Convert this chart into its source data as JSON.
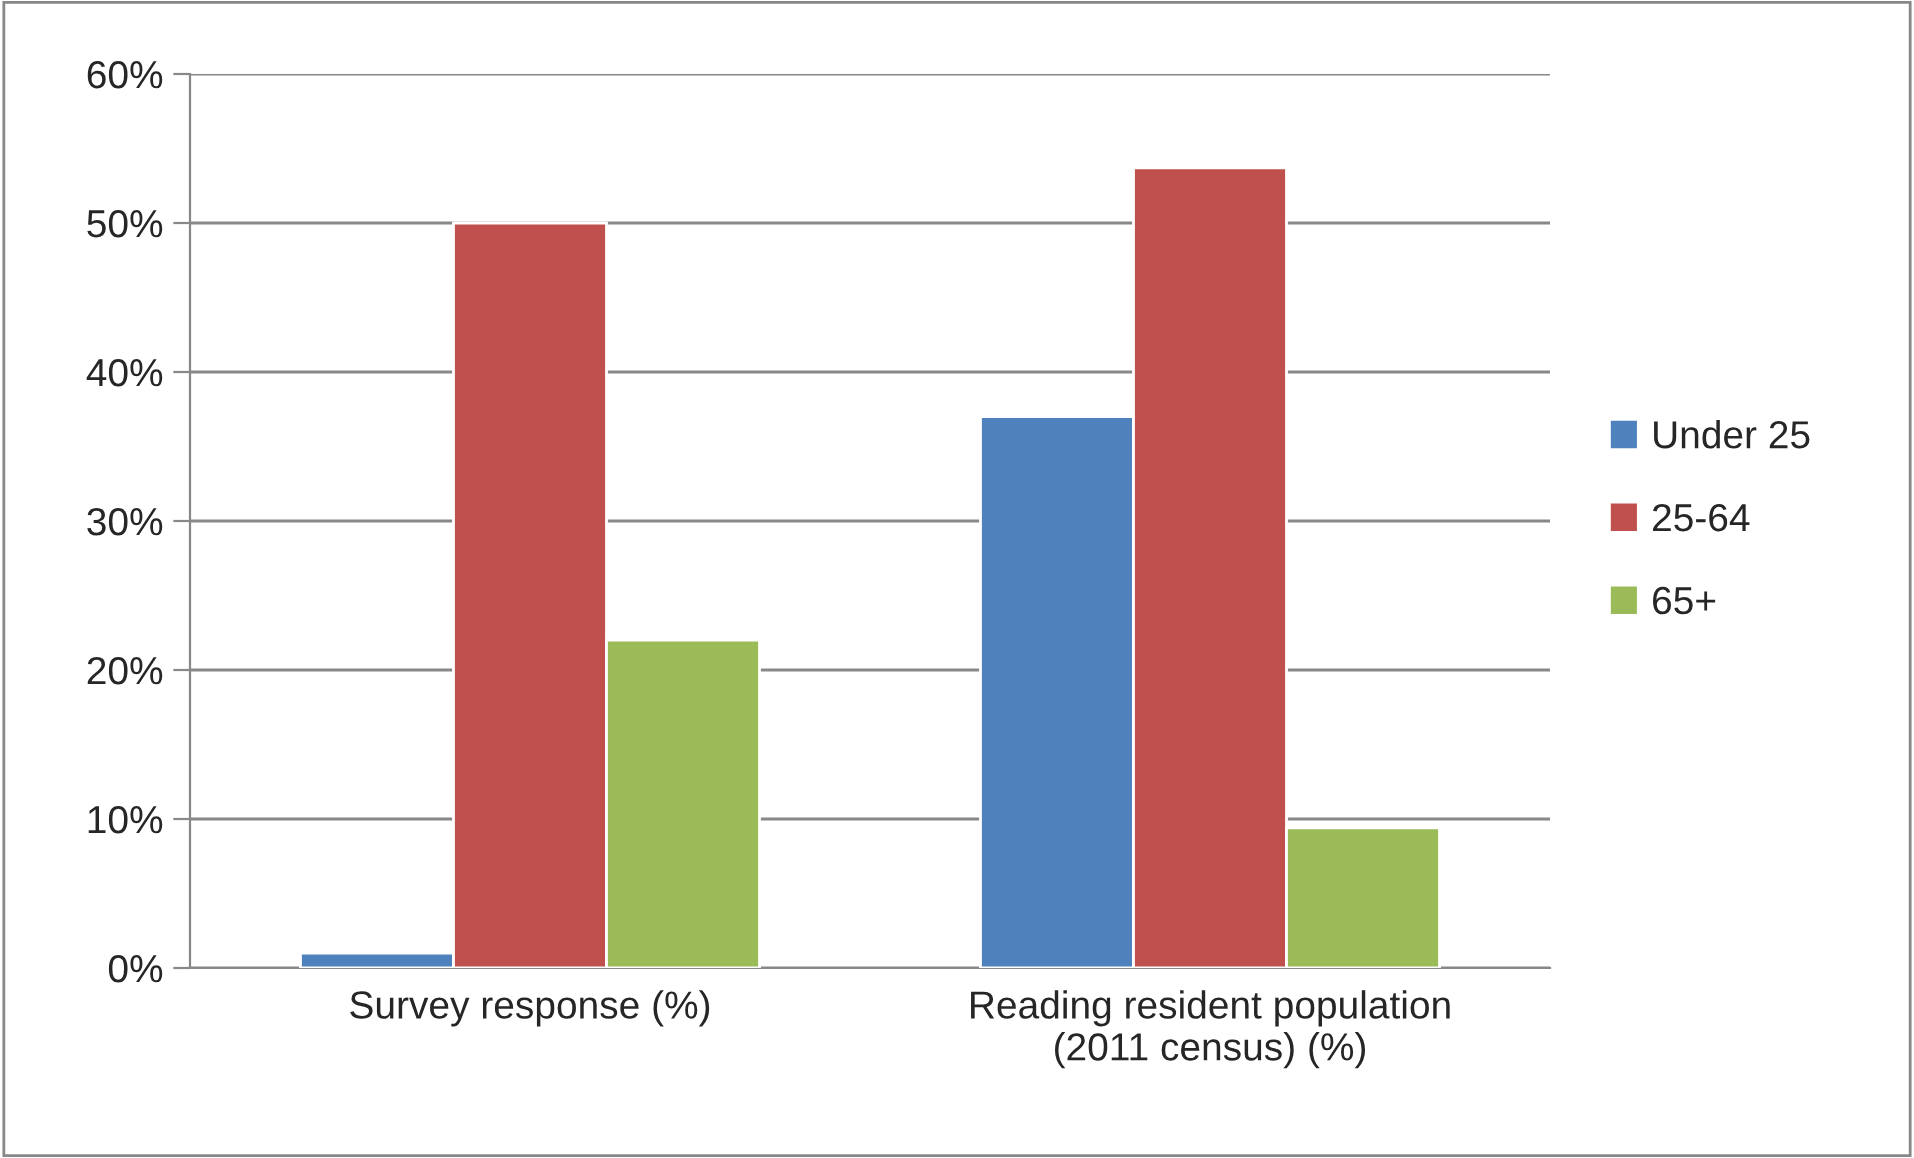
{
  "chart_data": {
    "type": "bar",
    "categories": [
      "Survey response (%)",
      "Reading resident population\n(2011 census) (%)"
    ],
    "series": [
      {
        "name": "Under 25",
        "color": "#4f81bd",
        "values": [
          1,
          37
        ]
      },
      {
        "name": "25-64",
        "color": "#c0504d",
        "values": [
          50,
          53.7
        ]
      },
      {
        "name": "65+",
        "color": "#9bbb59",
        "values": [
          22,
          9.4
        ]
      }
    ],
    "ylim": [
      0,
      60
    ],
    "yticks": [
      {
        "value": 0,
        "label": "0%"
      },
      {
        "value": 10,
        "label": "10%"
      },
      {
        "value": 20,
        "label": "20%"
      },
      {
        "value": 30,
        "label": "30%"
      },
      {
        "value": 40,
        "label": "40%"
      },
      {
        "value": 50,
        "label": "50%"
      },
      {
        "value": 60,
        "label": "60%"
      }
    ],
    "grid": "y",
    "legend": "right"
  }
}
